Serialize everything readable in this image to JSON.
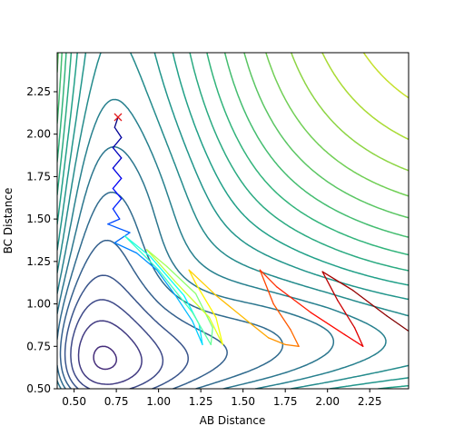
{
  "chart_data": {
    "type": "contour",
    "title": "",
    "xlabel": "AB Distance",
    "ylabel": "BC Distance",
    "xlim": [
      0.4,
      2.48
    ],
    "ylim": [
      0.5,
      2.48
    ],
    "xticks": [
      "0.50",
      "0.75",
      "1.00",
      "1.25",
      "1.50",
      "1.75",
      "2.00",
      "2.25"
    ],
    "yticks": [
      "0.50",
      "0.75",
      "1.00",
      "1.25",
      "1.50",
      "1.75",
      "2.00",
      "2.25"
    ],
    "xtick_values": [
      0.5,
      0.75,
      1.0,
      1.25,
      1.5,
      1.75,
      2.0,
      2.25
    ],
    "ytick_values": [
      0.5,
      0.75,
      1.0,
      1.25,
      1.5,
      1.75,
      2.0,
      2.25
    ],
    "start_marker": {
      "symbol": "x",
      "color": "#e41a1c",
      "x": 0.76,
      "y": 2.1
    },
    "trajectory": {
      "colormap": "jet",
      "points": [
        [
          0.76,
          2.1
        ],
        [
          0.74,
          2.04
        ],
        [
          0.78,
          1.98
        ],
        [
          0.73,
          1.92
        ],
        [
          0.78,
          1.86
        ],
        [
          0.73,
          1.8
        ],
        [
          0.78,
          1.74
        ],
        [
          0.73,
          1.68
        ],
        [
          0.78,
          1.62
        ],
        [
          0.73,
          1.56
        ],
        [
          0.77,
          1.5
        ],
        [
          0.7,
          1.47
        ],
        [
          0.83,
          1.42
        ],
        [
          0.74,
          1.36
        ],
        [
          0.87,
          1.3
        ],
        [
          0.99,
          1.2
        ],
        [
          1.1,
          1.05
        ],
        [
          1.2,
          0.9
        ],
        [
          1.26,
          0.76
        ],
        [
          1.24,
          0.88
        ],
        [
          1.15,
          1.05
        ],
        [
          0.95,
          1.28
        ],
        [
          0.8,
          1.4
        ],
        [
          1.0,
          1.2
        ],
        [
          1.2,
          0.95
        ],
        [
          1.31,
          0.76
        ],
        [
          1.32,
          0.86
        ],
        [
          1.22,
          1.06
        ],
        [
          1.05,
          1.22
        ],
        [
          0.93,
          1.32
        ],
        [
          1.1,
          1.13
        ],
        [
          1.3,
          0.92
        ],
        [
          1.38,
          0.76
        ],
        [
          1.34,
          0.92
        ],
        [
          1.22,
          1.12
        ],
        [
          1.18,
          1.2
        ],
        [
          1.34,
          1.05
        ],
        [
          1.55,
          0.88
        ],
        [
          1.65,
          0.8
        ],
        [
          1.75,
          0.76
        ],
        [
          1.83,
          0.75
        ],
        [
          1.78,
          0.85
        ],
        [
          1.68,
          1.0
        ],
        [
          1.6,
          1.2
        ],
        [
          1.7,
          1.1
        ],
        [
          1.9,
          0.95
        ],
        [
          2.1,
          0.82
        ],
        [
          2.21,
          0.75
        ],
        [
          2.16,
          0.86
        ],
        [
          2.06,
          1.02
        ],
        [
          1.97,
          1.19
        ],
        [
          2.15,
          1.08
        ],
        [
          2.35,
          0.93
        ],
        [
          2.48,
          0.84
        ]
      ]
    },
    "contours": {
      "colormap": "viridis",
      "levels": 24
    }
  }
}
